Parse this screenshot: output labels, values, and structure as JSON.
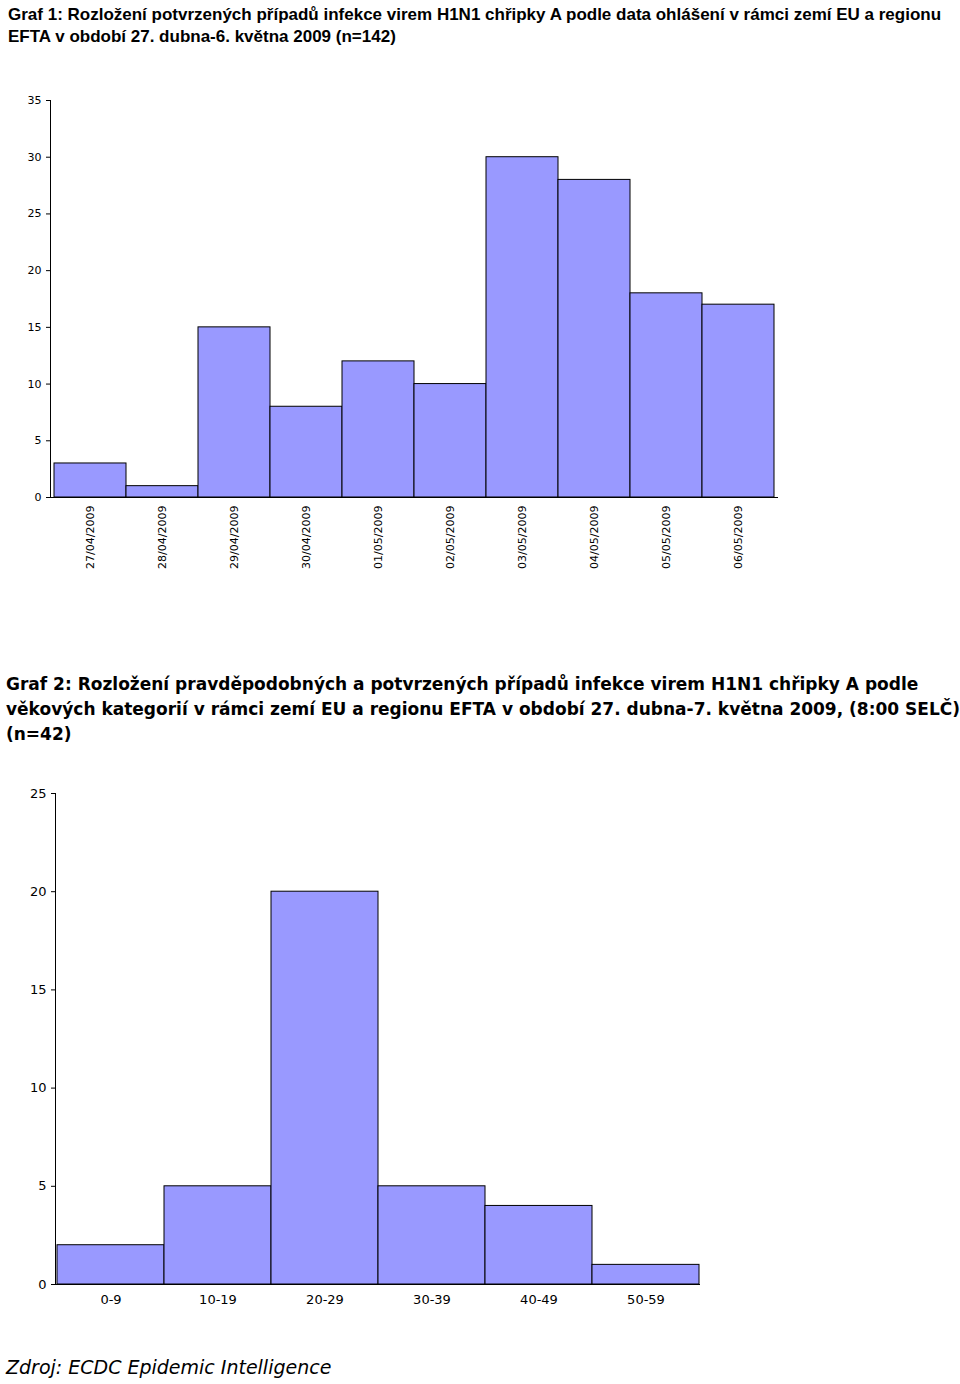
{
  "chart_data": [
    {
      "type": "bar",
      "title": "Graf 1: Rozložení potvrzených případů infekce virem H1N1 chřipky A podle data ohlášení v rámci zemí EU a regionu EFTA v období 27. dubna-6. května 2009 (n=142)",
      "categories": [
        "27/04/2009",
        "28/04/2009",
        "29/04/2009",
        "30/04/2009",
        "01/05/2009",
        "02/05/2009",
        "03/05/2009",
        "04/05/2009",
        "05/05/2009",
        "06/05/2009"
      ],
      "values": [
        3,
        1,
        15,
        8,
        12,
        10,
        30,
        28,
        18,
        17
      ],
      "color": "#9999ff",
      "ylim": [
        0,
        35
      ],
      "yticks": [
        0,
        5,
        10,
        15,
        20,
        25,
        30,
        35
      ],
      "grid": false
    },
    {
      "type": "bar",
      "title": "Graf 2: Rozložení pravděpodobných a potvrzených případů infekce virem H1N1 chřipky A podle věkových kategorií v rámci zemí EU a regionu EFTA v období 27. dubna-7. května 2009, (8:00 SELČ) (n=42)",
      "categories": [
        "0-9",
        "10-19",
        "20-29",
        "30-39",
        "40-49",
        "50-59"
      ],
      "values": [
        2,
        5,
        20,
        5,
        4,
        1
      ],
      "color": "#9999ff",
      "ylim": [
        0,
        25
      ],
      "yticks": [
        0,
        5,
        10,
        15,
        20,
        25
      ],
      "grid": false
    }
  ],
  "source": "Zdroj: ECDC Epidemic Intelligence"
}
